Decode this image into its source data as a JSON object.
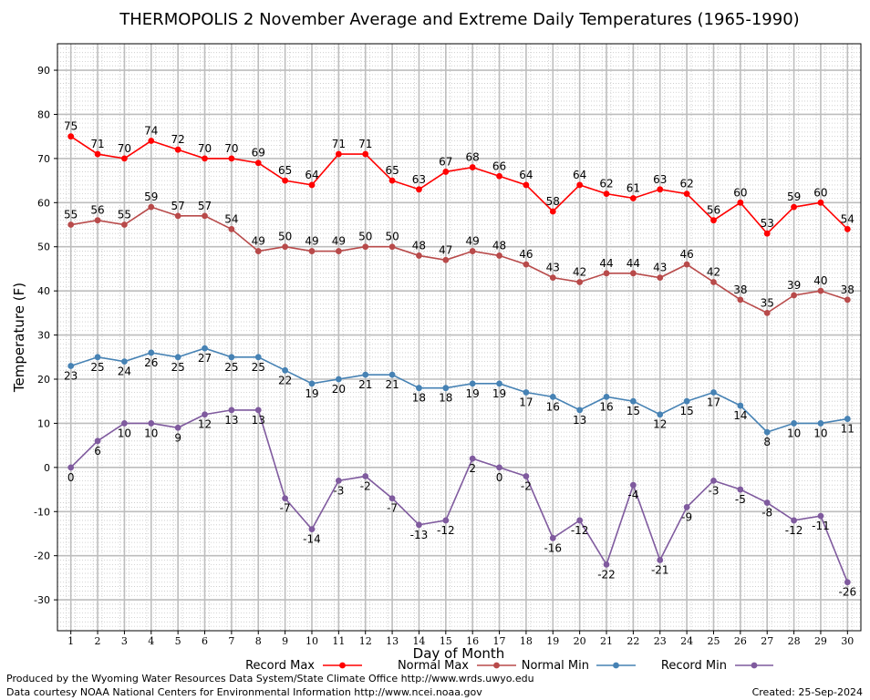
{
  "chart_data": {
    "type": "line",
    "title": "THERMOPOLIS 2 November Average and Extreme Daily Temperatures (1965-1990)",
    "xlabel": "Day of Month",
    "ylabel": "Temperature (F)",
    "ylim": [
      -37,
      96
    ],
    "y_ticks": [
      -30,
      -20,
      -10,
      0,
      10,
      20,
      30,
      40,
      50,
      60,
      70,
      80,
      90
    ],
    "x": [
      1,
      2,
      3,
      4,
      5,
      6,
      7,
      8,
      9,
      10,
      11,
      12,
      13,
      14,
      15,
      16,
      17,
      18,
      19,
      20,
      21,
      22,
      23,
      24,
      25,
      26,
      27,
      28,
      29,
      30
    ],
    "grid": true,
    "legend_position": "bottom",
    "series": [
      {
        "name": "Record Max",
        "color": "#ff0000",
        "values": [
          75,
          71,
          70,
          74,
          72,
          70,
          70,
          69,
          65,
          64,
          71,
          71,
          65,
          63,
          67,
          68,
          66,
          64,
          58,
          64,
          62,
          61,
          63,
          62,
          56,
          60,
          53,
          59,
          60,
          54
        ]
      },
      {
        "name": "Normal Max",
        "color": "#b84a4a",
        "values": [
          55,
          56,
          55,
          59,
          57,
          57,
          54,
          49,
          50,
          49,
          49,
          50,
          50,
          48,
          47,
          49,
          48,
          46,
          43,
          42,
          44,
          44,
          43,
          46,
          42,
          38,
          35,
          39,
          40,
          38
        ]
      },
      {
        "name": "Normal Min",
        "color": "#4682b4",
        "values": [
          23,
          25,
          24,
          26,
          25,
          27,
          25,
          25,
          22,
          19,
          20,
          21,
          21,
          18,
          18,
          19,
          19,
          17,
          16,
          13,
          16,
          15,
          12,
          15,
          17,
          14,
          8,
          10,
          10,
          11
        ]
      },
      {
        "name": "Record Min",
        "color": "#7f5a9e",
        "values": [
          0,
          6,
          10,
          10,
          9,
          12,
          13,
          13,
          -7,
          -14,
          -3,
          -2,
          -7,
          -13,
          -12,
          2,
          0,
          -2,
          -16,
          -12,
          -22,
          -4,
          -21,
          -9,
          -3,
          -5,
          -8,
          -12,
          -11,
          -26
        ]
      }
    ]
  },
  "footer": {
    "credit_line_1": "Produced by the Wyoming Water Resources Data System/State Climate Office http://www.wrds.uwyo.edu",
    "credit_line_2": "Data courtesy NOAA National Centers for Environmental Information http://www.ncei.noaa.gov",
    "created": "Created:  25-Sep-2024"
  }
}
